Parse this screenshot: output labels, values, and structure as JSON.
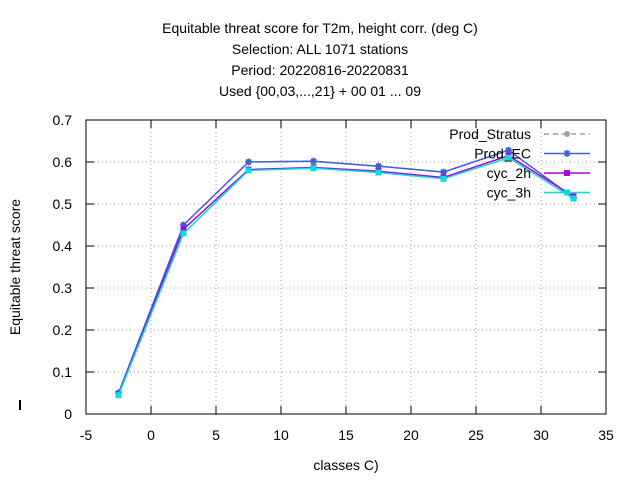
{
  "chart_data": {
    "type": "line",
    "title_lines": [
      "Equitable threat score  for T2m, height corr. (deg C)",
      "Selection: ALL    1071 stations",
      "Period: 20220816-20220831",
      "Used {00,03,...,21} + 00 01 ... 09"
    ],
    "xlabel": "classes C)",
    "ylabel": "Equitable threat score",
    "xlim": [
      -5,
      35
    ],
    "ylim": [
      0,
      0.7
    ],
    "xticks": [
      -5,
      0,
      5,
      10,
      15,
      20,
      25,
      30,
      35
    ],
    "yticks": [
      0,
      0.1,
      0.2,
      0.3,
      0.4,
      0.5,
      0.6,
      0.7
    ],
    "grid": true,
    "legend_position": "top-right",
    "x": [
      -2.5,
      2.5,
      7.5,
      12.5,
      17.5,
      22.5,
      27.5,
      32.5
    ],
    "series": [
      {
        "name": "Prod_Stratus",
        "color": "#a0a0a0",
        "dashed": true,
        "marker": "circle",
        "values": [
          0.05,
          0.45,
          0.6,
          0.602,
          0.59,
          0.576,
          0.628,
          0.515
        ]
      },
      {
        "name": "Prod_EC",
        "color": "#4060d0",
        "dashed": false,
        "marker": "star",
        "values": [
          0.05,
          0.45,
          0.6,
          0.602,
          0.59,
          0.576,
          0.628,
          0.515
        ]
      },
      {
        "name": "cyc_2h",
        "color": "#b000e0",
        "dashed": false,
        "marker": "square",
        "values": [
          0.047,
          0.44,
          0.582,
          0.587,
          0.578,
          0.563,
          0.615,
          0.518
        ]
      },
      {
        "name": "cyc_3h",
        "color": "#00e0e0",
        "dashed": false,
        "marker": "square",
        "values": [
          0.045,
          0.43,
          0.58,
          0.585,
          0.575,
          0.56,
          0.61,
          0.513
        ]
      }
    ]
  }
}
